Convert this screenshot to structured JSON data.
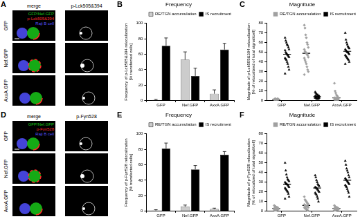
{
  "image_panels": [
    {
      "panel": "A",
      "columns": [
        "merge",
        "p-Lck505&394"
      ],
      "rows": [
        "GFP",
        "Nef.GFP",
        "AxxA.GFP"
      ],
      "channels": [
        {
          "name": "GFP/Nef.GFP",
          "color": "#19c819"
        },
        {
          "name": "p-Lck505&394",
          "color": "#ff2a2a"
        },
        {
          "name": "Raji B cell",
          "color": "#5050ff"
        }
      ]
    },
    {
      "panel": "D",
      "columns": [
        "merge",
        "p-Fyn528"
      ],
      "rows": [
        "GFP",
        "Nef.GFP",
        "AxxA.GFP"
      ],
      "channels": [
        {
          "name": "GFP/Nef.GFP",
          "color": "#19c819"
        },
        {
          "name": "p-Fyn528",
          "color": "#ff2a2a"
        },
        {
          "name": "Raji B cell",
          "color": "#5050ff"
        }
      ]
    }
  ],
  "chart_data": [
    {
      "type": "bar",
      "panel": "B",
      "title": "Frequency",
      "ylabel": [
        "Frequency of p-Lck505&394 relocalization",
        "[% transfected cells]"
      ],
      "categories": [
        "GFP",
        "Nef.GFP",
        "AxxA.GFP"
      ],
      "series": [
        {
          "name": "RE/TGN accumulation",
          "color": "#cccccc",
          "values": [
            1,
            53,
            9
          ],
          "errors": [
            1,
            10,
            5
          ]
        },
        {
          "name": "IS recruitment",
          "color": "#000000",
          "values": [
            71,
            32,
            66
          ],
          "errors": [
            10,
            10,
            8
          ]
        }
      ],
      "ylim": [
        0,
        100
      ],
      "yticks": [
        0,
        20,
        40,
        60,
        80,
        100
      ],
      "grid": false,
      "legend": "upper right"
    },
    {
      "type": "scatter",
      "panel": "C",
      "title": "Magnitude",
      "ylabel": [
        "Magnitude of p-Lck505&394 relocalization",
        "[% of relocalized of total signal/cell]"
      ],
      "categories": [
        "GFP",
        "Nef.GFP",
        "AxxA.GFP"
      ],
      "series": [
        {
          "name": "RE/TGN accumulation",
          "color": "#a0a0a0",
          "marker": "diamond",
          "values": [
            [
              1,
              1.5,
              2,
              1,
              1.2,
              1.8,
              1,
              1.5,
              2,
              1.3,
              1,
              1.6,
              1.2,
              1.8,
              1.4,
              1.1,
              1.7,
              1.5,
              1.3,
              1.9
            ],
            [
              78,
              75,
              68,
              65,
              60,
              58,
              55,
              53,
              51,
              50,
              49,
              48,
              47,
              45,
              44,
              42,
              40,
              38,
              35,
              32,
              30,
              27
            ],
            [
              18,
              10,
              8,
              6,
              5,
              4,
              3,
              3,
              3,
              2,
              2,
              2,
              2,
              1,
              1,
              1,
              1,
              1,
              1,
              1
            ]
          ],
          "means": [
            1.5,
            49,
            3
          ]
        },
        {
          "name": "IS recruitment",
          "color": "#000000",
          "marker": "triangle",
          "values": [
            [
              65,
              62,
              60,
              58,
              57,
              55,
              53,
              52,
              50,
              49,
              48,
              47,
              46,
              45,
              44,
              43,
              42,
              40,
              38,
              35,
              32,
              28
            ],
            [
              9,
              8,
              7,
              6,
              6,
              5,
              5,
              5,
              4,
              4,
              4,
              4,
              3,
              3,
              3,
              3,
              2,
              2,
              2,
              2
            ],
            [
              70,
              63,
              60,
              58,
              56,
              55,
              54,
              53,
              52,
              51,
              50,
              50,
              49,
              48,
              47,
              46,
              45,
              44,
              43,
              42,
              40,
              38
            ]
          ],
          "means": [
            48,
            4,
            51
          ]
        }
      ],
      "ylim": [
        0,
        80
      ],
      "yticks": [
        0,
        10,
        20,
        30,
        40,
        50,
        60,
        70,
        80
      ],
      "grid": false,
      "legend": "upper right"
    },
    {
      "type": "bar",
      "panel": "E",
      "title": "Frequency",
      "ylabel": [
        "Frequency of p-Fyn528 relocalization",
        "[% transfected cells]"
      ],
      "categories": [
        "GFP",
        "Nef.GFP",
        "AxxA.GFP"
      ],
      "series": [
        {
          "name": "RE/TGN accumulation",
          "color": "#cccccc",
          "values": [
            1,
            6,
            3
          ],
          "errors": [
            1,
            2,
            1
          ]
        },
        {
          "name": "IS recruitment",
          "color": "#000000",
          "values": [
            81,
            54,
            73
          ],
          "errors": [
            7,
            5,
            4
          ]
        }
      ],
      "ylim": [
        0,
        100
      ],
      "yticks": [
        0,
        20,
        40,
        60,
        80,
        100
      ],
      "grid": false,
      "legend": "upper right"
    },
    {
      "type": "scatter",
      "panel": "F",
      "title": "Magnitude",
      "ylabel": [
        "Magnitude of p-Fyn528 relocalization",
        "[% of relocalized of total signal/cell]"
      ],
      "categories": [
        "GFP",
        "Nef.GFP",
        "AxxA.GFP"
      ],
      "series": [
        {
          "name": "RE/TGN accumulation",
          "color": "#a0a0a0",
          "marker": "diamond",
          "values": [
            [
              6,
              5,
              5,
              4,
              4,
              4,
              3,
              3,
              3,
              3,
              2,
              2,
              2,
              2,
              2,
              1,
              1,
              1
            ],
            [
              15,
              12,
              11,
              10,
              9,
              8,
              7,
              7,
              6,
              6,
              5,
              5,
              5,
              4,
              4,
              3,
              3,
              2,
              2,
              1
            ],
            [
              6,
              5,
              4,
              4,
              4,
              3,
              3,
              3,
              3,
              2,
              2,
              2,
              2,
              2,
              1,
              1,
              1
            ]
          ],
          "means": [
            3,
            6,
            3
          ]
        },
        {
          "name": "IS recruitment",
          "color": "#000000",
          "marker": "triangle",
          "values": [
            [
              50,
              42,
              38,
              35,
              33,
              32,
              31,
              30,
              29,
              28,
              28,
              27,
              26,
              25,
              24,
              23,
              22,
              21,
              20,
              18,
              15,
              13
            ],
            [
              37,
              35,
              32,
              30,
              28,
              27,
              26,
              25,
              24,
              24,
              23,
              22,
              21,
              20,
              19,
              18,
              17,
              15,
              13,
              10
            ],
            [
              52,
              48,
              44,
              42,
              40,
              37,
              35,
              34,
              33,
              32,
              31,
              30,
              29,
              28,
              27,
              26,
              25,
              23,
              21,
              19,
              15
            ]
          ],
          "means": [
            28,
            24,
            32
          ]
        }
      ],
      "ylim": [
        0,
        80
      ],
      "yticks": [
        0,
        10,
        20,
        30,
        40,
        50,
        60,
        70,
        80
      ],
      "grid": false,
      "legend": "upper right"
    }
  ]
}
